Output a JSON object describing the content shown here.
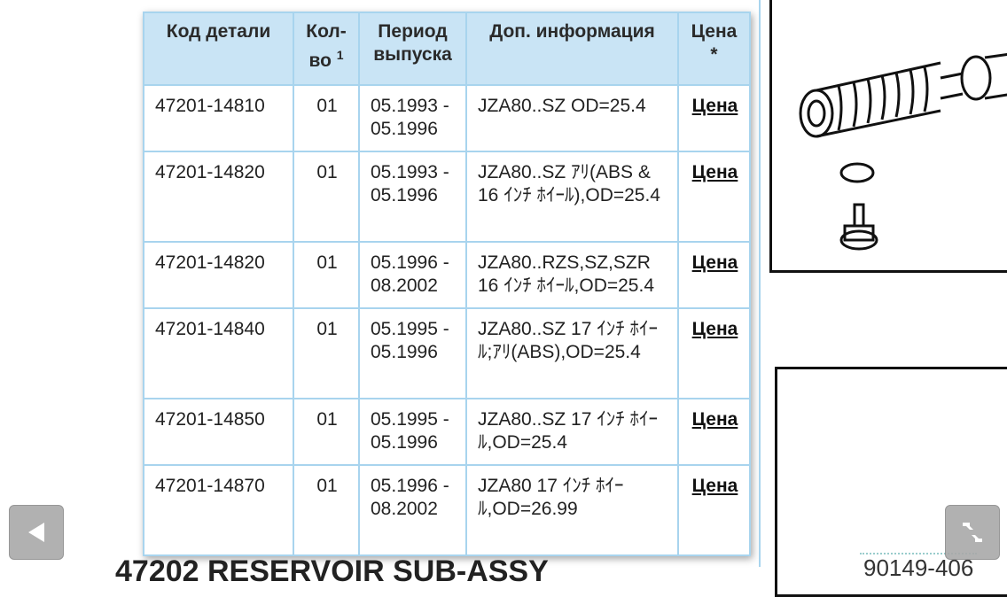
{
  "table": {
    "headers": {
      "code": "Код детали",
      "qty": "Кол-во",
      "qty_note": "1",
      "period": "Период выпуска",
      "info": "Доп. информация",
      "price": "Цена",
      "price_note": "*"
    },
    "rows": [
      {
        "code": "47201-14810",
        "qty": "01",
        "period": "05.1993 - 05.1996",
        "info": "JZA80..SZ OD=25.4",
        "price": "Цена"
      },
      {
        "code": "47201-14820",
        "qty": "01",
        "period": "05.1993 - 05.1996",
        "info": "JZA80..SZ ｱﾘ(ABS & 16 ｲﾝﾁ ﾎｲｰﾙ),OD=25.4",
        "price": "Цена"
      },
      {
        "code": "47201-14820",
        "qty": "01",
        "period": "05.1996 - 08.2002",
        "info": "JZA80..RZS,SZ,SZR 16 ｲﾝﾁ ﾎｲｰﾙ,OD=25.4",
        "price": "Цена"
      },
      {
        "code": "47201-14840",
        "qty": "01",
        "period": "05.1995 - 05.1996",
        "info": "JZA80..SZ 17 ｲﾝﾁ ﾎｲｰﾙ;ｱﾘ(ABS),OD=25.4",
        "price": "Цена"
      },
      {
        "code": "47201-14850",
        "qty": "01",
        "period": "05.1995 - 05.1996",
        "info": "JZA80..SZ 17 ｲﾝﾁ ﾎｲｰﾙ,OD=25.4",
        "price": "Цена"
      },
      {
        "code": "47201-14870",
        "qty": "01",
        "period": "05.1996 - 08.2002",
        "info": "JZA80 17 ｲﾝﾁ ﾎｲｰﾙ,OD=26.99",
        "price": "Цена"
      }
    ]
  },
  "next_section": {
    "title": "47202 RESERVOIR SUB-ASSY"
  },
  "diagram": {
    "part_label": "90149-406"
  },
  "nav": {
    "back_icon": "triangle-left-icon",
    "collapse_icon": "shrink-arrows-icon"
  },
  "colors": {
    "header_bg": "#c9e4f5",
    "border": "#a8d4ee"
  }
}
